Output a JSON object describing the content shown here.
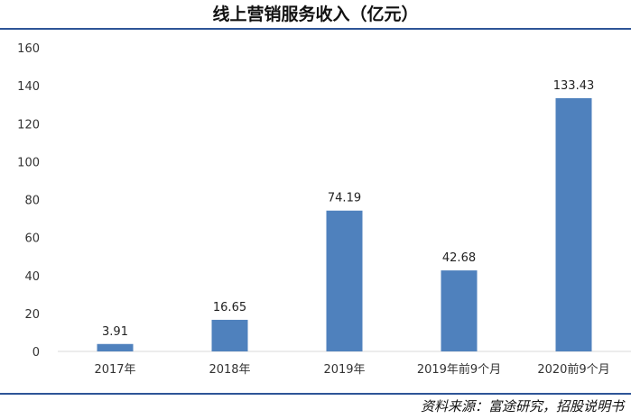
{
  "title": "线上营销服务收入（亿元）",
  "source": "资料来源：富途研究，招股说明书",
  "colors": {
    "bar": "#4f81bd",
    "rule": "#2e5597",
    "axis": "#d9d9d9"
  },
  "chart_data": {
    "type": "bar",
    "title": "线上营销服务收入（亿元）",
    "categories": [
      "2017年",
      "2018年",
      "2019年",
      "2019年前9个月",
      "2020前9个月"
    ],
    "values": [
      3.91,
      16.65,
      74.19,
      42.68,
      133.43
    ],
    "value_labels": [
      "3.91",
      "16.65",
      "74.19",
      "42.68",
      "133.43"
    ],
    "yticks": [
      0,
      20,
      40,
      60,
      80,
      100,
      120,
      140,
      160
    ],
    "ylim": [
      0,
      160
    ],
    "grid": false,
    "legend": "none",
    "xlabel": "",
    "ylabel": ""
  }
}
